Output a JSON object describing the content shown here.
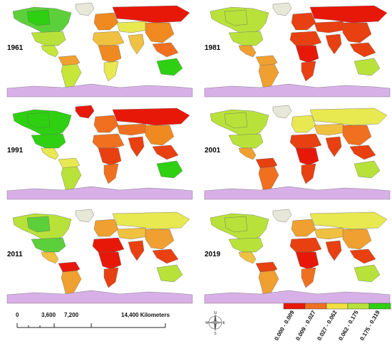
{
  "maps": [
    {
      "year": "1961",
      "north_america": "#5cd03a",
      "canada_west": "#2fd012",
      "usa": "#b8e23a",
      "mexico": "#c6e63a",
      "south_america": "#c6e63a",
      "south_america_north": "#f0a030",
      "europe": "#f08a20",
      "africa_north": "#f0c040",
      "africa_central": "#f08a20",
      "africa_south": "#e8e850",
      "russia": "#e81808",
      "central_asia": "#e8e850",
      "china": "#f08a20",
      "india": "#f0c040",
      "se_asia": "#f07020",
      "australia": "#2fd012",
      "greenland": "#e8e8d8"
    },
    {
      "year": "1981",
      "north_america": "#b8e23a",
      "canada_west": "#b8e23a",
      "usa": "#b8e23a",
      "mexico": "#f0a030",
      "south_america": "#f0a030",
      "south_america_north": "#f0a030",
      "europe": "#e84010",
      "africa_north": "#e84010",
      "africa_central": "#e81808",
      "africa_south": "#e84010",
      "russia": "#e81808",
      "central_asia": "#e84010",
      "china": "#e84010",
      "india": "#e84010",
      "se_asia": "#e84010",
      "australia": "#b8e23a",
      "greenland": "#e8e8d8"
    },
    {
      "year": "1991",
      "north_america": "#2fd012",
      "canada_west": "#2fd012",
      "usa": "#2fd012",
      "mexico": "#e8e850",
      "south_america": "#b8e23a",
      "south_america_north": "#e8e850",
      "europe": "#f07020",
      "africa_north": "#f07020",
      "africa_central": "#e84010",
      "africa_south": "#f07020",
      "russia": "#e81808",
      "central_asia": "#f07020",
      "china": "#f08a20",
      "india": "#e84010",
      "se_asia": "#e84010",
      "australia": "#2fd012",
      "greenland": "#e81808"
    },
    {
      "year": "2001",
      "north_america": "#b8e23a",
      "canada_west": "#b8e23a",
      "usa": "#b8e23a",
      "mexico": "#f0a030",
      "south_america": "#f07020",
      "south_america_north": "#e84010",
      "europe": "#e8e850",
      "africa_north": "#e84010",
      "africa_central": "#e81808",
      "africa_south": "#e84010",
      "russia": "#e8e850",
      "central_asia": "#f0c040",
      "china": "#f07020",
      "india": "#e84010",
      "se_asia": "#e84010",
      "australia": "#b8e23a",
      "greenland": "#e8e8d8"
    },
    {
      "year": "2011",
      "north_america": "#b8e23a",
      "canada_west": "#5cd03a",
      "usa": "#5cd03a",
      "mexico": "#f0c040",
      "south_america": "#f0a030",
      "south_america_north": "#e81808",
      "europe": "#f0a030",
      "africa_north": "#e81808",
      "africa_central": "#e81808",
      "africa_south": "#e84010",
      "russia": "#e8e850",
      "central_asia": "#f0c040",
      "china": "#f0a030",
      "india": "#e84010",
      "se_asia": "#e84010",
      "australia": "#b8e23a",
      "greenland": "#e8e8d8"
    },
    {
      "year": "2019",
      "north_america": "#b8e23a",
      "canada_west": "#b8e23a",
      "usa": "#b8e23a",
      "mexico": "#f0c040",
      "south_america": "#f0a030",
      "south_america_north": "#e84010",
      "europe": "#f0a030",
      "africa_north": "#e84010",
      "africa_central": "#e81808",
      "africa_south": "#f07020",
      "russia": "#e8e850",
      "central_asia": "#f0c040",
      "china": "#f0a030",
      "india": "#e84010",
      "se_asia": "#e84010",
      "australia": "#b8e23a",
      "greenland": "#e8e8d8"
    }
  ],
  "antarctica_color": "#d8b0e8",
  "scale_bar": {
    "labels": [
      "0",
      "3,600",
      "7,200",
      "14,400 Kilometers"
    ]
  },
  "compass": {
    "n": "N",
    "s": "S",
    "e": "E",
    "w": "W"
  },
  "legend": {
    "classes": [
      {
        "label": "0.000 - 0.009",
        "color": "#e81808"
      },
      {
        "label": "0.009 - 0.027",
        "color": "#f07020"
      },
      {
        "label": "0.027 - 0.062",
        "color": "#f0e040"
      },
      {
        "label": "0.062 - 0.175",
        "color": "#b8e23a"
      },
      {
        "label": "0.175 - 0.319",
        "color": "#2fd012"
      }
    ]
  }
}
